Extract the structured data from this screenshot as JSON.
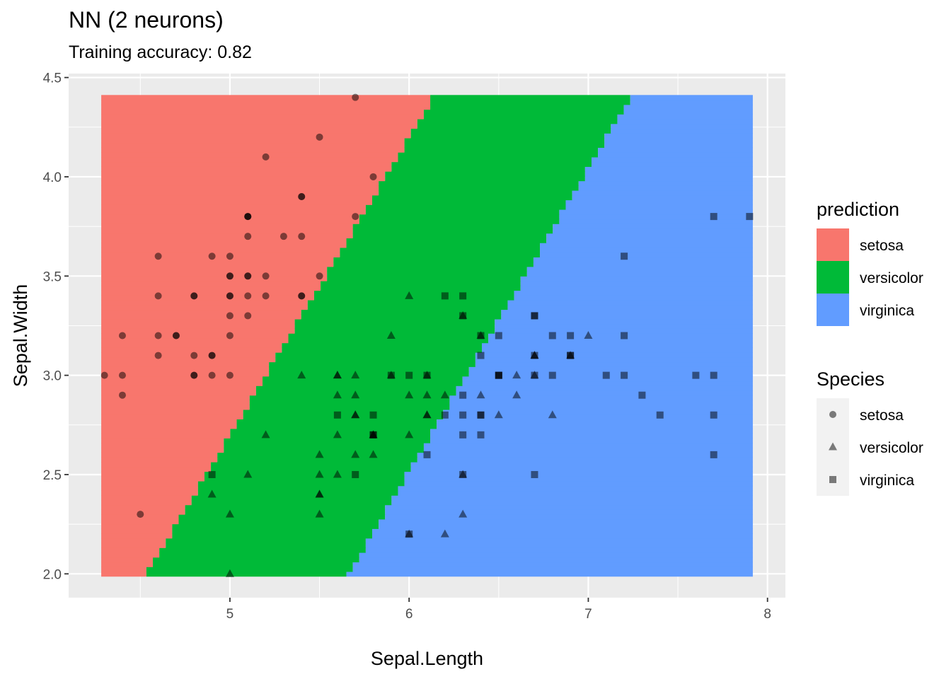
{
  "chart_data": {
    "type": "scatter",
    "title": "NN (2 neurons)",
    "subtitle": "Training accuracy: 0.82",
    "xlabel": "Sepal.Length",
    "ylabel": "Sepal.Width",
    "xlim": [
      4.1,
      8.1
    ],
    "ylim": [
      1.88,
      4.52
    ],
    "x_ticks": [
      5,
      6,
      7,
      8
    ],
    "y_ticks": [
      2.0,
      2.5,
      3.0,
      3.5,
      4.0,
      4.5
    ],
    "x_tick_labels": [
      "5",
      "6",
      "7",
      "8"
    ],
    "y_tick_labels": [
      "2.0",
      "2.5",
      "3.0",
      "3.5",
      "4.0",
      "4.5"
    ],
    "grid": true,
    "legend_position": "right",
    "background_region": {
      "x_range": [
        4.3,
        7.9
      ],
      "y_range": [
        2.0,
        4.4
      ],
      "boundary_setosa_versicolor": [
        [
          4.55,
          2.0
        ],
        [
          6.15,
          4.4
        ]
      ],
      "boundary_versicolor_virginica": [
        [
          5.68,
          2.0
        ],
        [
          7.25,
          4.4
        ]
      ]
    },
    "legends": [
      {
        "title": "prediction",
        "items": [
          {
            "label": "setosa",
            "color": "#F8766D"
          },
          {
            "label": "versicolor",
            "color": "#00BA38"
          },
          {
            "label": "virginica",
            "color": "#619CFF"
          }
        ]
      },
      {
        "title": "Species",
        "items": [
          {
            "label": "setosa",
            "shape": "circle"
          },
          {
            "label": "versicolor",
            "shape": "triangle"
          },
          {
            "label": "virginica",
            "shape": "square"
          }
        ]
      }
    ],
    "series": [
      {
        "name": "setosa",
        "shape": "circle",
        "points": [
          [
            5.1,
            3.5
          ],
          [
            4.9,
            3.0
          ],
          [
            4.7,
            3.2
          ],
          [
            4.6,
            3.1
          ],
          [
            5.0,
            3.6
          ],
          [
            5.4,
            3.9
          ],
          [
            4.6,
            3.4
          ],
          [
            5.0,
            3.4
          ],
          [
            4.4,
            2.9
          ],
          [
            4.9,
            3.1
          ],
          [
            5.4,
            3.7
          ],
          [
            4.8,
            3.4
          ],
          [
            4.8,
            3.0
          ],
          [
            4.3,
            3.0
          ],
          [
            5.8,
            4.0
          ],
          [
            5.7,
            4.4
          ],
          [
            5.4,
            3.9
          ],
          [
            5.1,
            3.5
          ],
          [
            5.7,
            3.8
          ],
          [
            5.1,
            3.8
          ],
          [
            5.4,
            3.4
          ],
          [
            5.1,
            3.7
          ],
          [
            4.6,
            3.6
          ],
          [
            5.1,
            3.3
          ],
          [
            4.8,
            3.4
          ],
          [
            5.0,
            3.0
          ],
          [
            5.0,
            3.4
          ],
          [
            5.2,
            3.5
          ],
          [
            5.2,
            3.4
          ],
          [
            4.7,
            3.2
          ],
          [
            4.8,
            3.1
          ],
          [
            5.4,
            3.4
          ],
          [
            5.2,
            4.1
          ],
          [
            5.5,
            4.2
          ],
          [
            4.9,
            3.1
          ],
          [
            5.0,
            3.2
          ],
          [
            5.5,
            3.5
          ],
          [
            4.9,
            3.6
          ],
          [
            4.4,
            3.0
          ],
          [
            5.1,
            3.4
          ],
          [
            5.0,
            3.5
          ],
          [
            4.5,
            2.3
          ],
          [
            4.4,
            3.2
          ],
          [
            5.0,
            3.5
          ],
          [
            5.1,
            3.8
          ],
          [
            4.8,
            3.0
          ],
          [
            5.1,
            3.8
          ],
          [
            4.6,
            3.2
          ],
          [
            5.3,
            3.7
          ],
          [
            5.0,
            3.3
          ]
        ]
      },
      {
        "name": "versicolor",
        "shape": "triangle",
        "points": [
          [
            7.0,
            3.2
          ],
          [
            6.4,
            3.2
          ],
          [
            6.9,
            3.1
          ],
          [
            5.5,
            2.3
          ],
          [
            6.5,
            2.8
          ],
          [
            5.7,
            2.8
          ],
          [
            6.3,
            3.3
          ],
          [
            4.9,
            2.4
          ],
          [
            6.6,
            2.9
          ],
          [
            5.2,
            2.7
          ],
          [
            5.0,
            2.0
          ],
          [
            5.9,
            3.0
          ],
          [
            6.0,
            2.2
          ],
          [
            6.1,
            2.9
          ],
          [
            5.6,
            2.9
          ],
          [
            6.7,
            3.1
          ],
          [
            5.6,
            3.0
          ],
          [
            5.8,
            2.7
          ],
          [
            6.2,
            2.2
          ],
          [
            5.6,
            2.5
          ],
          [
            5.9,
            3.2
          ],
          [
            6.1,
            2.8
          ],
          [
            6.3,
            2.5
          ],
          [
            6.1,
            2.8
          ],
          [
            6.4,
            2.9
          ],
          [
            6.6,
            3.0
          ],
          [
            6.8,
            2.8
          ],
          [
            6.7,
            3.0
          ],
          [
            6.0,
            2.9
          ],
          [
            5.7,
            2.6
          ],
          [
            5.5,
            2.4
          ],
          [
            5.5,
            2.4
          ],
          [
            5.8,
            2.7
          ],
          [
            6.0,
            2.7
          ],
          [
            5.4,
            3.0
          ],
          [
            6.0,
            3.4
          ],
          [
            6.7,
            3.1
          ],
          [
            6.3,
            2.3
          ],
          [
            5.6,
            3.0
          ],
          [
            5.5,
            2.5
          ],
          [
            5.5,
            2.6
          ],
          [
            6.1,
            3.0
          ],
          [
            5.8,
            2.6
          ],
          [
            5.0,
            2.3
          ],
          [
            5.6,
            2.7
          ],
          [
            5.7,
            3.0
          ],
          [
            5.7,
            2.9
          ],
          [
            6.2,
            2.9
          ],
          [
            5.1,
            2.5
          ],
          [
            5.7,
            2.8
          ]
        ]
      },
      {
        "name": "virginica",
        "shape": "square",
        "points": [
          [
            6.3,
            3.3
          ],
          [
            5.8,
            2.7
          ],
          [
            7.1,
            3.0
          ],
          [
            6.3,
            2.9
          ],
          [
            6.5,
            3.0
          ],
          [
            7.6,
            3.0
          ],
          [
            4.9,
            2.5
          ],
          [
            7.3,
            2.9
          ],
          [
            6.7,
            2.5
          ],
          [
            7.2,
            3.6
          ],
          [
            6.5,
            3.2
          ],
          [
            6.4,
            2.7
          ],
          [
            6.8,
            3.0
          ],
          [
            5.7,
            2.5
          ],
          [
            5.8,
            2.8
          ],
          [
            6.4,
            3.2
          ],
          [
            6.5,
            3.0
          ],
          [
            7.7,
            3.8
          ],
          [
            7.7,
            2.6
          ],
          [
            6.0,
            2.2
          ],
          [
            6.9,
            3.2
          ],
          [
            5.6,
            2.8
          ],
          [
            7.7,
            2.8
          ],
          [
            6.3,
            2.7
          ],
          [
            6.7,
            3.3
          ],
          [
            7.2,
            3.2
          ],
          [
            6.2,
            2.8
          ],
          [
            6.1,
            3.0
          ],
          [
            6.4,
            2.8
          ],
          [
            7.2,
            3.0
          ],
          [
            7.4,
            2.8
          ],
          [
            7.9,
            3.8
          ],
          [
            6.4,
            2.8
          ],
          [
            6.3,
            2.8
          ],
          [
            6.1,
            2.6
          ],
          [
            7.7,
            3.0
          ],
          [
            6.3,
            3.4
          ],
          [
            6.4,
            3.1
          ],
          [
            6.0,
            3.0
          ],
          [
            6.9,
            3.1
          ],
          [
            6.7,
            3.1
          ],
          [
            6.9,
            3.1
          ],
          [
            5.8,
            2.7
          ],
          [
            6.8,
            3.2
          ],
          [
            6.7,
            3.3
          ],
          [
            6.7,
            3.0
          ],
          [
            6.3,
            2.5
          ],
          [
            6.5,
            3.0
          ],
          [
            6.2,
            3.4
          ],
          [
            5.9,
            3.0
          ]
        ]
      }
    ]
  }
}
